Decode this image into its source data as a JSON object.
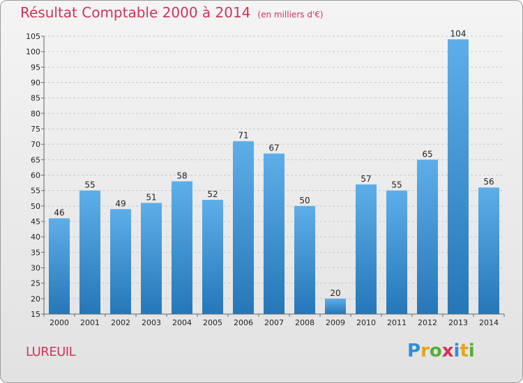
{
  "header": {
    "title": "Résultat Comptable 2000 à 2014",
    "subtitle": "(en milliers d'€)"
  },
  "location": "LUREUIL",
  "logo": {
    "text": "Proxiti",
    "letters": [
      {
        "ch": "P",
        "color": "#2e8fd8"
      },
      {
        "ch": "r",
        "color": "#e9a21a"
      },
      {
        "ch": "o",
        "color": "#55b02e"
      },
      {
        "ch": "x",
        "color": "#d1335a"
      },
      {
        "ch": "i",
        "color": "#2e8fd8"
      },
      {
        "ch": "t",
        "color": "#e9a21a"
      },
      {
        "ch": "i",
        "color": "#55b02e"
      }
    ]
  },
  "colors": {
    "bar_top": "#5daee8",
    "bar_bottom": "#2677b8",
    "title": "#d1335a"
  },
  "chart_data": {
    "type": "bar",
    "title": "Résultat Comptable 2000 à 2014",
    "subtitle": "(en milliers d'€)",
    "categories": [
      "2000",
      "2001",
      "2002",
      "2003",
      "2004",
      "2005",
      "2006",
      "2007",
      "2008",
      "2009",
      "2010",
      "2011",
      "2012",
      "2013",
      "2014"
    ],
    "values": [
      46,
      55,
      49,
      51,
      58,
      52,
      71,
      67,
      50,
      20,
      57,
      55,
      65,
      104,
      56
    ],
    "ylim": [
      15,
      105
    ],
    "yticks": [
      15,
      20,
      25,
      30,
      35,
      40,
      45,
      50,
      55,
      60,
      65,
      70,
      75,
      80,
      85,
      90,
      95,
      100,
      105
    ],
    "grid": true,
    "xlabel": "",
    "ylabel": ""
  }
}
